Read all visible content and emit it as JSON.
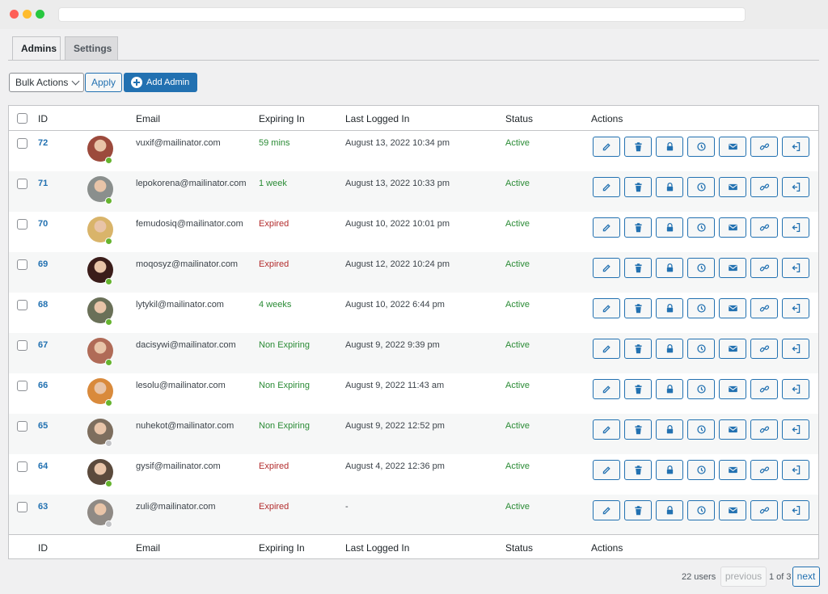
{
  "tabs": {
    "admins": "Admins",
    "settings": "Settings"
  },
  "toolbar": {
    "bulk_actions": "Bulk Actions",
    "apply": "Apply",
    "add_admin": "Add Admin"
  },
  "columns": {
    "id": "ID",
    "email": "Email",
    "expiring": "Expiring In",
    "last_logged": "Last Logged In",
    "status": "Status",
    "actions": "Actions"
  },
  "colors": {
    "expired": "#b32d2e",
    "ok": "#2a8b35",
    "link": "#2271b1",
    "online": "#65b32e",
    "offline": "#c3c4c7"
  },
  "rows": [
    {
      "id": "72",
      "email": "vuxif@mailinator.com",
      "expiring": "59 mins",
      "expiring_state": "ok",
      "last_logged": "August 13, 2022 10:34 pm",
      "status": "Active",
      "online": true,
      "avatar_color": "#9c4a3c"
    },
    {
      "id": "71",
      "email": "lepokorena@mailinator.com",
      "expiring": "1 week",
      "expiring_state": "ok",
      "last_logged": "August 13, 2022 10:33 pm",
      "status": "Active",
      "online": true,
      "avatar_color": "#8a8f8d"
    },
    {
      "id": "70",
      "email": "femudosiq@mailinator.com",
      "expiring": "Expired",
      "expiring_state": "expired",
      "last_logged": "August 10, 2022 10:01 pm",
      "status": "Active",
      "online": true,
      "avatar_color": "#d9b46a"
    },
    {
      "id": "69",
      "email": "moqosyz@mailinator.com",
      "expiring": "Expired",
      "expiring_state": "expired",
      "last_logged": "August 12, 2022 10:24 pm",
      "status": "Active",
      "online": true,
      "avatar_color": "#3b1d1a"
    },
    {
      "id": "68",
      "email": "lytykil@mailinator.com",
      "expiring": "4 weeks",
      "expiring_state": "ok",
      "last_logged": "August 10, 2022 6:44 pm",
      "status": "Active",
      "online": true,
      "avatar_color": "#6a7058"
    },
    {
      "id": "67",
      "email": "dacisywi@mailinator.com",
      "expiring": "Non Expiring",
      "expiring_state": "ok",
      "last_logged": "August 9, 2022 9:39 pm",
      "status": "Active",
      "online": true,
      "avatar_color": "#b06b57"
    },
    {
      "id": "66",
      "email": "lesolu@mailinator.com",
      "expiring": "Non Expiring",
      "expiring_state": "ok",
      "last_logged": "August 9, 2022 11:43 am",
      "status": "Active",
      "online": true,
      "avatar_color": "#d98a3c"
    },
    {
      "id": "65",
      "email": "nuhekot@mailinator.com",
      "expiring": "Non Expiring",
      "expiring_state": "ok",
      "last_logged": "August 9, 2022 12:52 pm",
      "status": "Active",
      "online": false,
      "avatar_color": "#7d6e5e"
    },
    {
      "id": "64",
      "email": "gysif@mailinator.com",
      "expiring": "Expired",
      "expiring_state": "expired",
      "last_logged": "August 4, 2022 12:36 pm",
      "status": "Active",
      "online": true,
      "avatar_color": "#5b4a3c"
    },
    {
      "id": "63",
      "email": "zuli@mailinator.com",
      "expiring": "Expired",
      "expiring_state": "expired",
      "last_logged": "-",
      "status": "Active",
      "online": false,
      "avatar_color": "#8f8a85"
    }
  ],
  "row_actions": [
    {
      "name": "edit-icon"
    },
    {
      "name": "trash-icon"
    },
    {
      "name": "lock-icon"
    },
    {
      "name": "history-icon"
    },
    {
      "name": "email-icon"
    },
    {
      "name": "link-icon"
    },
    {
      "name": "login-icon"
    }
  ],
  "pagination": {
    "count": "22 users",
    "previous": "previous",
    "page_of": "1 of 3",
    "next": "next"
  }
}
